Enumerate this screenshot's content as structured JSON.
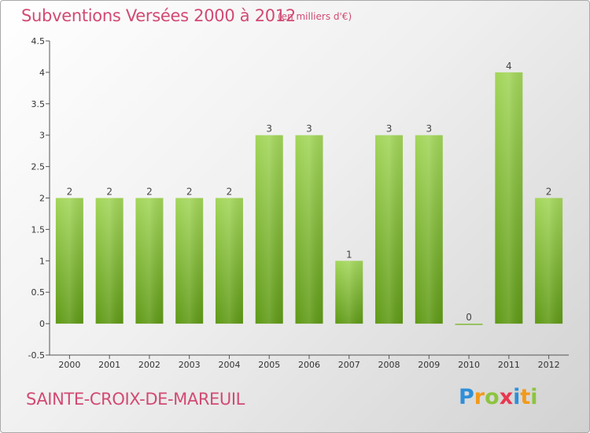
{
  "title": "Subventions Versées 2000 à 2012",
  "subtitle": "(en milliers d'€)",
  "commune": "SAINTE-CROIX-DE-MAREUIL",
  "logo": {
    "letters": [
      "P",
      "r",
      "o",
      "x",
      "i",
      "t",
      "i"
    ],
    "colors": [
      "#2f8fd8",
      "#f29a1a",
      "#8dc43e",
      "#e8384f",
      "#2f8fd8",
      "#f29a1a",
      "#8dc43e"
    ]
  },
  "colors": {
    "bar_light": "#a3d65a",
    "bar_dark": "#5f9a16",
    "title": "#d24a73",
    "axis": "#555555"
  },
  "chart_data": {
    "type": "bar",
    "categories": [
      "2000",
      "2001",
      "2002",
      "2003",
      "2004",
      "2005",
      "2006",
      "2007",
      "2008",
      "2009",
      "2010",
      "2011",
      "2012"
    ],
    "values": [
      2,
      2,
      2,
      2,
      2,
      3,
      3,
      1,
      3,
      3,
      0,
      4,
      2
    ],
    "data_labels": [
      "2",
      "2",
      "2",
      "2",
      "2",
      "3",
      "3",
      "1",
      "3",
      "3",
      "0",
      "4",
      "2"
    ],
    "yticks": [
      -0.5,
      0,
      0.5,
      1,
      1.5,
      2,
      2.5,
      3,
      3.5,
      4,
      4.5
    ],
    "ytick_labels": [
      "-0.5",
      "0",
      "0.5",
      "1",
      "1.5",
      "2",
      "2.5",
      "3",
      "3.5",
      "4",
      "4.5"
    ],
    "ylim": [
      -0.5,
      4.5
    ],
    "title": "Subventions Versées 2000 à 2012",
    "xlabel": "",
    "ylabel": "",
    "grid": false
  }
}
